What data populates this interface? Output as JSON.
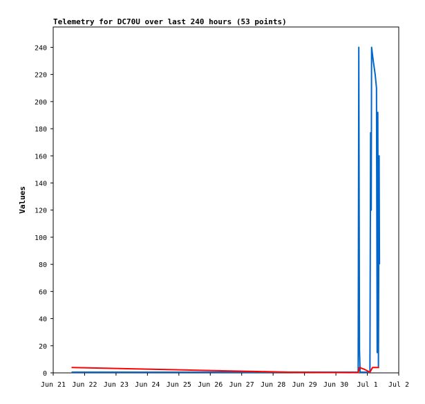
{
  "chart_data": {
    "type": "line",
    "title": "Telemetry for DC70U over last 240 hours (53 points)",
    "xlabel": "",
    "ylabel": "Values",
    "ylim": [
      0,
      255
    ],
    "xlim": [
      "Jun 21",
      "Jul 2"
    ],
    "grid": false,
    "legend": "none",
    "y_ticks": [
      0,
      20,
      40,
      60,
      80,
      100,
      120,
      140,
      160,
      180,
      200,
      220,
      240
    ],
    "x_ticks": [
      "Jun 21",
      "Jun 22",
      "Jun 23",
      "Jun 24",
      "Jun 25",
      "Jun 26",
      "Jun 27",
      "Jun 28",
      "Jun 29",
      "Jun 30",
      "Jul 1",
      "Jul 2"
    ],
    "series": [
      {
        "color": "#0066cc",
        "points": [
          [
            "Jun 21 14:00",
            0.5
          ],
          [
            "Jun 30 17:00",
            0.5
          ],
          [
            "Jun 30 17:30",
            240
          ],
          [
            "Jun 30 18:00",
            17
          ],
          [
            "Jun 30 18:30",
            0.5
          ],
          [
            "Jul 1 02:00",
            0.5
          ],
          [
            "Jul 1 02:30",
            177
          ],
          [
            "Jul 1 03:00",
            120
          ],
          [
            "Jul 1 03:15",
            240
          ],
          [
            "Jul 1 04:30",
            230
          ],
          [
            "Jul 1 06:00",
            220
          ],
          [
            "Jul 1 07:00",
            210
          ],
          [
            "Jul 1 07:30",
            15
          ],
          [
            "Jul 1 08:00",
            192
          ],
          [
            "Jul 1 08:30",
            4
          ],
          [
            "Jul 1 09:00",
            160
          ],
          [
            "Jul 1 09:15",
            80
          ]
        ]
      },
      {
        "color": "#ff0000",
        "points": [
          [
            "Jun 21 14:00",
            4
          ],
          [
            "Jun 22 12:00",
            3.5
          ],
          [
            "Jun 23 12:00",
            3
          ],
          [
            "Jun 24 12:00",
            2.5
          ],
          [
            "Jun 25 12:00",
            2
          ],
          [
            "Jun 26 12:00",
            1.5
          ],
          [
            "Jun 27 12:00",
            1
          ],
          [
            "Jun 28 12:00",
            0.5
          ],
          [
            "Jun 29 12:00",
            0.3
          ],
          [
            "Jun 30 17:00",
            0.2
          ],
          [
            "Jun 30 18:00",
            4
          ],
          [
            "Jun 30 22:00",
            2.5
          ],
          [
            "Jul 1 02:00",
            0.5
          ],
          [
            "Jul 1 04:00",
            4
          ],
          [
            "Jul 1 09:00",
            4
          ]
        ]
      }
    ]
  }
}
